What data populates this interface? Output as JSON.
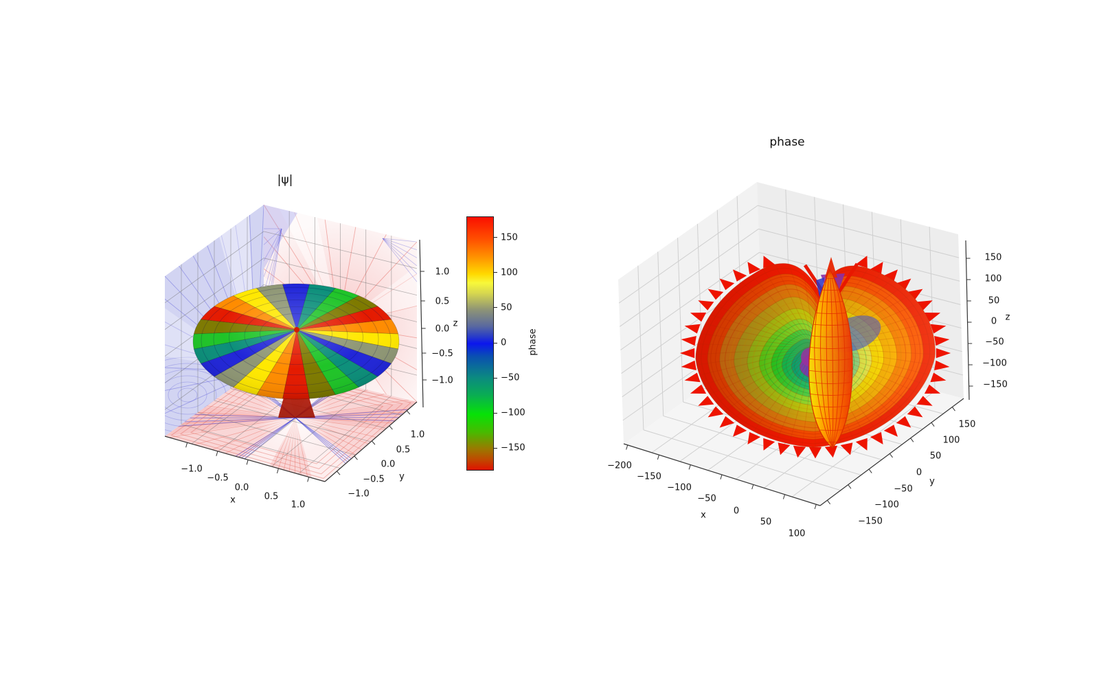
{
  "figure": {
    "background": "#ffffff"
  },
  "left_plot": {
    "title": "|ψ|",
    "axis_labels": {
      "x": "x",
      "y": "y",
      "z": "z"
    },
    "x_ticks": [
      "−1.0",
      "−0.5",
      "0.0",
      "0.5",
      "1.0"
    ],
    "y_ticks": [
      "−1.0",
      "−0.5",
      "0.0",
      "0.5",
      "1.0"
    ],
    "z_ticks": [
      "1.0",
      "0.5",
      "0.0",
      "−0.5",
      "−1.0"
    ],
    "surface_band_colors": [
      "#e41a00",
      "#ff8c00",
      "#ffe800",
      "#8f9775",
      "#2126d8",
      "#0c8f7a",
      "#1fc428",
      "#7e7a00"
    ],
    "phase_cycles": 3,
    "panes": {
      "left_wall": "#d2d4f2",
      "right_wall": "#fdf4f4",
      "floor": "#fdeeee",
      "contour_blue": "rgba(80,80,215,0.42)",
      "contour_red": "rgba(225,75,65,0.42)",
      "grid": "rgba(110,110,110,0.5)"
    }
  },
  "colorbar": {
    "label": "phase",
    "ticks": [
      "150",
      "100",
      "50",
      "0",
      "−50",
      "−100",
      "−150"
    ],
    "tick_values": [
      150,
      100,
      50,
      0,
      -50,
      -100,
      -150
    ],
    "range": [
      -180,
      180
    ],
    "gradient": [
      [
        0.0,
        "#fa0f00"
      ],
      [
        0.085,
        "#ff4d00"
      ],
      [
        0.16,
        "#ff9400"
      ],
      [
        0.225,
        "#ffd900"
      ],
      [
        0.26,
        "#f8f83a"
      ],
      [
        0.3,
        "#d8d84e"
      ],
      [
        0.365,
        "#8f9575"
      ],
      [
        0.43,
        "#5b6a9e"
      ],
      [
        0.47,
        "#2b3fc6"
      ],
      [
        0.5,
        "#0b16ee"
      ],
      [
        0.55,
        "#0a4fb2"
      ],
      [
        0.635,
        "#0b8a80"
      ],
      [
        0.7,
        "#0aab56"
      ],
      [
        0.78,
        "#07e207"
      ],
      [
        0.85,
        "#47bb00"
      ],
      [
        0.915,
        "#997a00"
      ],
      [
        0.96,
        "#c04800"
      ],
      [
        1.0,
        "#df1200"
      ]
    ]
  },
  "right_plot": {
    "title": "phase",
    "axis_labels": {
      "x": "x",
      "y": "y",
      "z": "z"
    },
    "x_ticks": [
      "−200",
      "−150",
      "−100",
      "−50",
      "0",
      "50",
      "100"
    ],
    "y_ticks": [
      "150",
      "100",
      "50",
      "0",
      "−50",
      "−100",
      "−150"
    ],
    "z_ticks": [
      "150",
      "100",
      "50",
      "0",
      "−50",
      "−100",
      "−150"
    ],
    "pane_color": "#f1f1f1",
    "grid_color": "#cfcfcf",
    "rings": [
      {
        "scale": 1.0,
        "left": "#ee1400",
        "right": "#f02300"
      },
      {
        "scale": 0.9,
        "left": "#e33a00",
        "right": "#ff5a00"
      },
      {
        "scale": 0.8,
        "left": "#c86a10",
        "right": "#ff8400"
      },
      {
        "scale": 0.68,
        "left": "#a68d18",
        "right": "#ffb300"
      },
      {
        "scale": 0.57,
        "left": "#8fae14",
        "right": "#ffd900"
      },
      {
        "scale": 0.47,
        "left": "#55c313",
        "right": "#e8e44a"
      },
      {
        "scale": 0.37,
        "left": "#27c41c",
        "right": "#93d07c"
      },
      {
        "scale": 0.28,
        "left": "#12b44a",
        "right": "#4bbd8d"
      },
      {
        "scale": 0.2,
        "left": "#0ba06b",
        "right": "#2aa99a"
      },
      {
        "scale": 0.13,
        "left": "#7a3fa8",
        "right": "#3b4ec0"
      }
    ],
    "spindle": {
      "left": "#ffe800",
      "mid": "#ff9100",
      "right": "#f03000",
      "grid": "#e33000",
      "spike": "#e82600",
      "accent_purple": "#8b2fa4",
      "accent_blue": "#2c35c8"
    },
    "rim_spike_color": "#ee1400"
  },
  "chart_data": [
    {
      "type": "3d-surface",
      "title": "|ψ|",
      "xlabel": "x",
      "ylabel": "y",
      "zlabel": "z",
      "xticks": [
        -1.0,
        -0.5,
        0.0,
        0.5,
        1.0
      ],
      "yticks": [
        -1.0,
        -0.5,
        0.0,
        0.5,
        1.0
      ],
      "zticks": [
        -1.0,
        -0.5,
        0.0,
        0.5,
        1.0
      ],
      "xlim": [
        -1.4,
        1.4
      ],
      "ylim": [
        -1.4,
        1.4
      ],
      "zlim": [
        -1.4,
        1.4
      ],
      "color_by": "phase",
      "colorbar": {
        "label": "phase",
        "ticks": [
          150,
          100,
          50,
          0,
          -50,
          -100,
          -150
        ],
        "range": [
          -180,
          180
        ]
      },
      "description": "Torus/donut-shaped |ψ| isosurface centred at the origin, coloured cyclically by complex phase (3 full colour cycles around the azimuth, bands red→orange→yellow→grey→blue→teal→green). Red/blue wavefunction contour projections are drawn on the two back panes and on the floor, where they form a six-armed red/blue star; a red funnel connects the torus centre to the floor."
    },
    {
      "type": "3d-surface",
      "title": "phase",
      "xlabel": "x",
      "ylabel": "y",
      "zlabel": "z",
      "xticks": [
        -200,
        -150,
        -100,
        -50,
        0,
        50,
        100
      ],
      "yticks": [
        -150,
        -100,
        -50,
        0,
        50,
        100,
        150
      ],
      "zticks": [
        -150,
        -100,
        -50,
        0,
        50,
        100,
        150
      ],
      "description": "Apple/heart-shaped phase surface: a flattened disc of concentric rainbow rings (spiky red rim → orange → yellow (right) / olive-green (left) → green → teal → blue/purple core) pierced by a vertical translucent orange spindle with a red wireframe that tapers to red spikes above and below the disc."
    }
  ]
}
